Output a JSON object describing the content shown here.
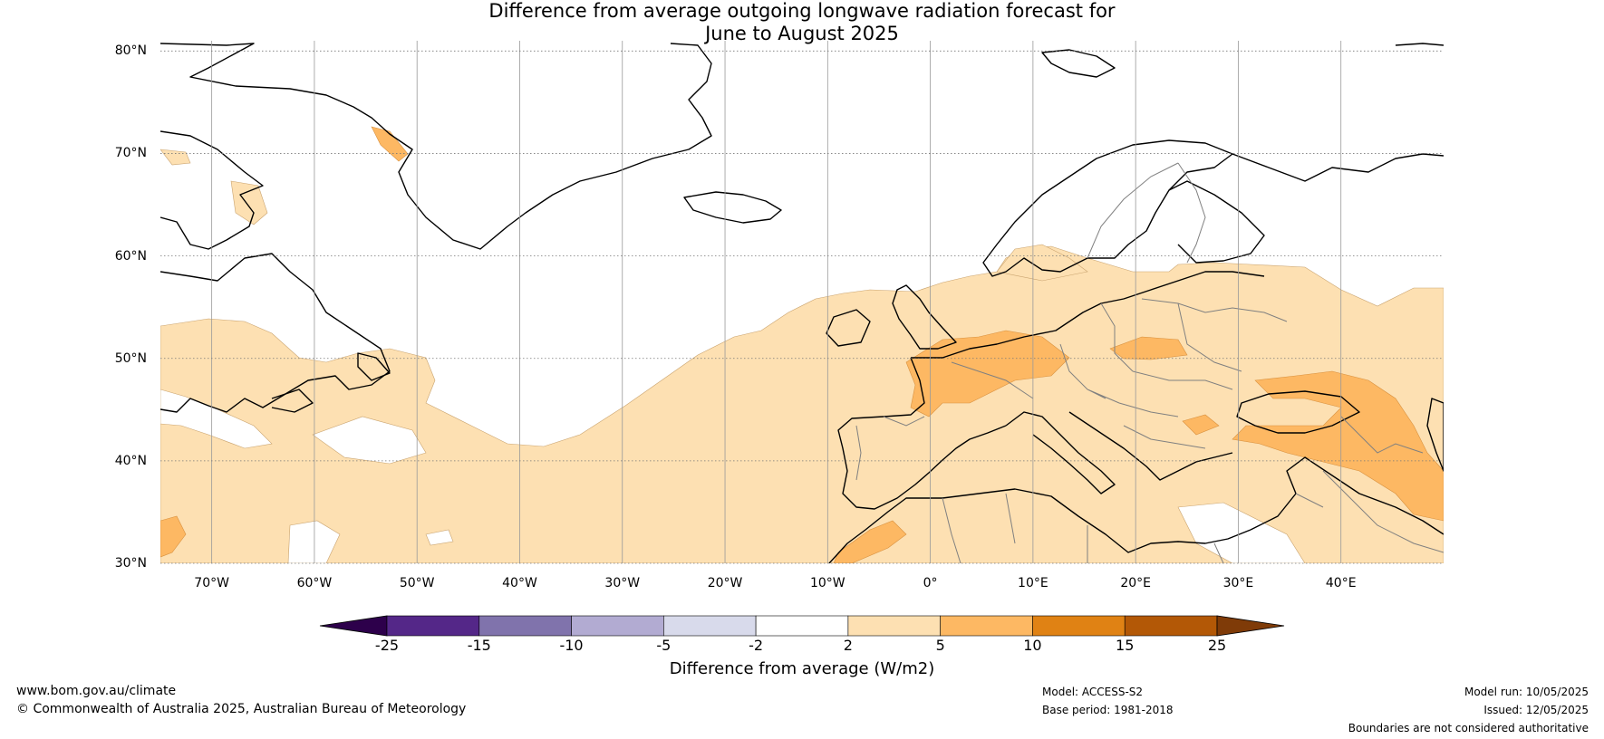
{
  "title_line1": "Difference from average outgoing longwave radiation forecast for",
  "title_line2": "June to August 2025",
  "lat_labels": [
    "80°N",
    "70°N",
    "60°N",
    "50°N",
    "40°N",
    "30°N"
  ],
  "lon_labels": [
    "70°W",
    "60°W",
    "50°W",
    "40°W",
    "30°W",
    "20°W",
    "10°W",
    "0°",
    "10°E",
    "20°E",
    "30°E",
    "40°E"
  ],
  "colorbar": {
    "ticks": [
      "-25",
      "-15",
      "-10",
      "-5",
      "-2",
      "2",
      "5",
      "10",
      "15",
      "25"
    ],
    "colors": [
      "#2d004b",
      "#542788",
      "#8073ac",
      "#b2abd2",
      "#d8daeb",
      "#ffffff",
      "#fde0b2",
      "#fdb863",
      "#e08214",
      "#b35806",
      "#7f3b08"
    ],
    "label": "Difference from average (W/m2)"
  },
  "footer": {
    "website": "www.bom.gov.au/climate",
    "copyright": "© Commonwealth of Australia 2025, Australian Bureau of Meteorology",
    "model": "Model: ACCESS-S2",
    "base_period": "Base period: 1981-2018",
    "model_run": "Model run: 10/05/2025",
    "issued": "Issued: 12/05/2025",
    "disclaimer": "Boundaries are not considered authoritative"
  },
  "map_colors": {
    "light_anomaly": "#fde0b2",
    "medium_anomaly": "#fdb863",
    "coastline": "#000000",
    "borders": "#808080",
    "grid": "#999999"
  }
}
